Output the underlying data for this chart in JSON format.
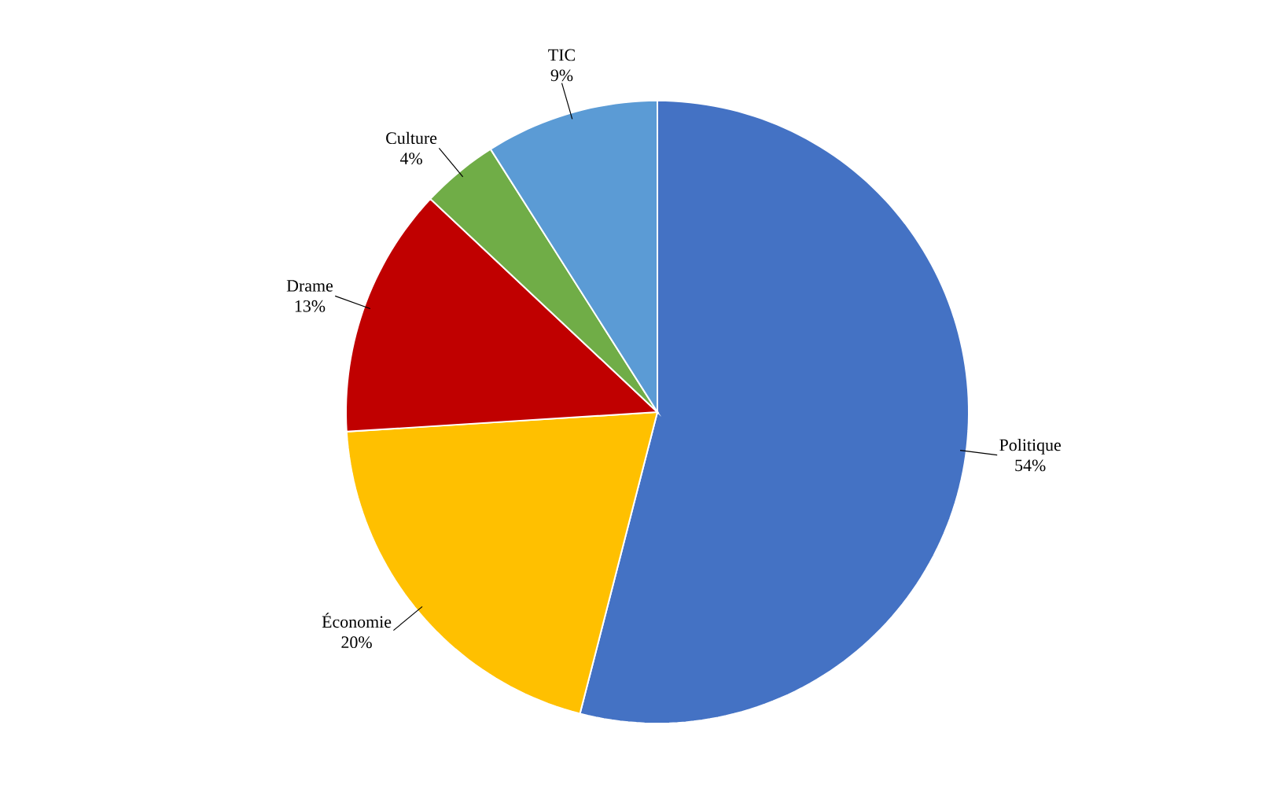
{
  "chart_data": {
    "type": "pie",
    "categories": [
      "Politique",
      "Économie",
      "Drame",
      "Culture",
      "TIC"
    ],
    "values": [
      54,
      20,
      13,
      4,
      9
    ],
    "value_labels": [
      "54%",
      "20%",
      "13%",
      "4%",
      "9%"
    ],
    "colors": [
      "#4472c4",
      "#ffc000",
      "#c00000",
      "#70ad47",
      "#5b9bd5"
    ]
  }
}
